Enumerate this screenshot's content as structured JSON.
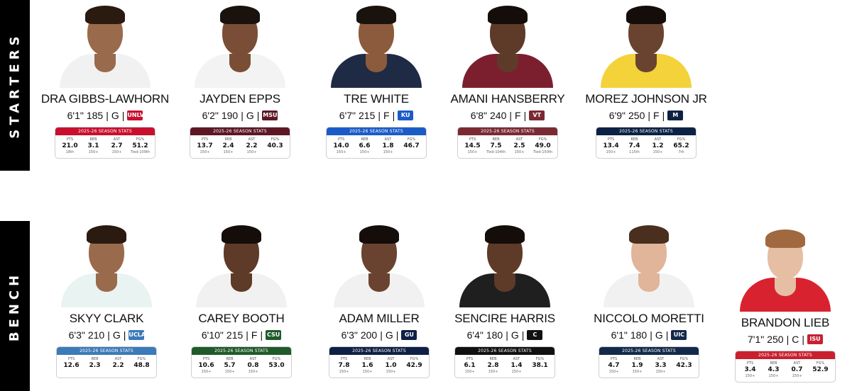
{
  "labels": {
    "starters": "STARTERS",
    "bench": "BENCH"
  },
  "starters": [
    {
      "name": "DRA GIBBS-LAWHORN",
      "height": "6'1\"",
      "weight": "185",
      "pos": "G",
      "school_abbr": "UNLV",
      "color": "#c8102e",
      "header": "2025-26 SEASON STATS",
      "jersey": "#f1f1f1",
      "skin": "#9a6a4c",
      "hair": "#2a1a10",
      "stats": [
        {
          "label": "PTS",
          "value": "21.0",
          "rank": "18th"
        },
        {
          "label": "REB",
          "value": "3.1",
          "rank": "150+"
        },
        {
          "label": "AST",
          "value": "2.7",
          "rank": "150+"
        },
        {
          "label": "FG%",
          "value": "51.2",
          "rank": "Tied-109th"
        }
      ]
    },
    {
      "name": "JAYDEN EPPS",
      "height": "6'2\"",
      "weight": "190",
      "pos": "G",
      "school_abbr": "MSU",
      "color": "#5d1725",
      "header": "2025-26 SEASON STATS",
      "jersey": "#f3f3f3",
      "skin": "#7a4e36",
      "hair": "#1a120d",
      "stats": [
        {
          "label": "PTS",
          "value": "13.7",
          "rank": "150+"
        },
        {
          "label": "REB",
          "value": "2.4",
          "rank": "150+"
        },
        {
          "label": "AST",
          "value": "2.2",
          "rank": "150+"
        },
        {
          "label": "FG%",
          "value": "40.3",
          "rank": ""
        }
      ]
    },
    {
      "name": "TRE WHITE",
      "height": "6'7\"",
      "weight": "215",
      "pos": "F",
      "school_abbr": "KU",
      "color": "#1c5bc7",
      "header": "2025-26 SEASON STATS",
      "jersey": "#1f2a44",
      "skin": "#8c5a3c",
      "hair": "#1a120d",
      "stats": [
        {
          "label": "PTS",
          "value": "14.0",
          "rank": "150+"
        },
        {
          "label": "REB",
          "value": "6.6",
          "rank": "150+"
        },
        {
          "label": "AST",
          "value": "1.8",
          "rank": "150+"
        },
        {
          "label": "FG%",
          "value": "46.7",
          "rank": ""
        }
      ]
    },
    {
      "name": "AMANI HANSBERRY",
      "height": "6'8\"",
      "weight": "240",
      "pos": "F",
      "school_abbr": "VT",
      "color": "#7a2a33",
      "header": "2025-26 SEASON STATS",
      "jersey": "#7b1f2e",
      "skin": "#5e3a28",
      "hair": "#140d09",
      "stats": [
        {
          "label": "PTS",
          "value": "14.5",
          "rank": "150+"
        },
        {
          "label": "REB",
          "value": "7.5",
          "rank": "Tied-104th"
        },
        {
          "label": "AST",
          "value": "2.5",
          "rank": "150+"
        },
        {
          "label": "FG%",
          "value": "49.0",
          "rank": "Tied-150th"
        }
      ]
    },
    {
      "name": "MOREZ JOHNSON JR",
      "height": "6'9\"",
      "weight": "250",
      "pos": "F",
      "school_abbr": "M",
      "color": "#0b2244",
      "header": "2025-26 SEASON STATS",
      "jersey": "#f3d23a",
      "skin": "#6a4330",
      "hair": "#140d09",
      "stats": [
        {
          "label": "PTS",
          "value": "13.4",
          "rank": "150+"
        },
        {
          "label": "REB",
          "value": "7.4",
          "rank": "115th"
        },
        {
          "label": "AST",
          "value": "1.2",
          "rank": "150+"
        },
        {
          "label": "FG%",
          "value": "65.2",
          "rank": "7th"
        }
      ]
    }
  ],
  "bench": [
    {
      "name": "SKYY CLARK",
      "height": "6'3\"",
      "weight": "210",
      "pos": "G",
      "school_abbr": "UCLA",
      "color": "#3c7ab8",
      "header": "2025-26 SEASON STATS",
      "jersey": "#e9f3f1",
      "skin": "#9a6a4c",
      "hair": "#2a1a10",
      "stats": [
        {
          "label": "PTS",
          "value": "12.6",
          "rank": ""
        },
        {
          "label": "REB",
          "value": "2.3",
          "rank": ""
        },
        {
          "label": "AST",
          "value": "2.2",
          "rank": ""
        },
        {
          "label": "FG%",
          "value": "48.8",
          "rank": ""
        }
      ]
    },
    {
      "name": "CAREY BOOTH",
      "height": "6'10\"",
      "weight": "215",
      "pos": "F",
      "school_abbr": "CSU",
      "color": "#1f5a2b",
      "header": "2025-26 SEASON STATS",
      "jersey": "#f1f1f1",
      "skin": "#5e3a28",
      "hair": "#140d09",
      "stats": [
        {
          "label": "PTS",
          "value": "10.6",
          "rank": "150+"
        },
        {
          "label": "REB",
          "value": "5.7",
          "rank": "150+"
        },
        {
          "label": "AST",
          "value": "0.8",
          "rank": "150+"
        },
        {
          "label": "FG%",
          "value": "53.0",
          "rank": ""
        }
      ]
    },
    {
      "name": "ADAM MILLER",
      "height": "6'3\"",
      "weight": "200",
      "pos": "G",
      "school_abbr": "GU",
      "color": "#0f1f45",
      "header": "2025-26 SEASON STATS",
      "jersey": "#f1f1f1",
      "skin": "#6a4330",
      "hair": "#140d09",
      "stats": [
        {
          "label": "PTS",
          "value": "7.8",
          "rank": "150+"
        },
        {
          "label": "REB",
          "value": "1.6",
          "rank": "150+"
        },
        {
          "label": "AST",
          "value": "1.0",
          "rank": "150+"
        },
        {
          "label": "FG%",
          "value": "42.9",
          "rank": ""
        }
      ]
    },
    {
      "name": "SENCIRE HARRIS",
      "height": "6'4\"",
      "weight": "180",
      "pos": "G",
      "school_abbr": "C",
      "color": "#111111",
      "header": "2025-26 SEASON STATS",
      "jersey": "#1f1f1f",
      "skin": "#5e3a28",
      "hair": "#140d09",
      "stats": [
        {
          "label": "PTS",
          "value": "6.1",
          "rank": "150+"
        },
        {
          "label": "REB",
          "value": "2.8",
          "rank": "150+"
        },
        {
          "label": "AST",
          "value": "1.4",
          "rank": "150+"
        },
        {
          "label": "FG%",
          "value": "38.1",
          "rank": ""
        }
      ]
    },
    {
      "name": "NICCOLO MORETTI",
      "height": "6'1\"",
      "weight": "180",
      "pos": "G",
      "school_abbr": "UIC",
      "color": "#13294b",
      "header": "2025-26 SEASON STATS",
      "jersey": "#f1f1f1",
      "skin": "#e0b59a",
      "hair": "#4a2f1e",
      "stats": [
        {
          "label": "PTS",
          "value": "4.7",
          "rank": "150+"
        },
        {
          "label": "REB",
          "value": "1.9",
          "rank": "150+"
        },
        {
          "label": "AST",
          "value": "3.3",
          "rank": "150+"
        },
        {
          "label": "FG%",
          "value": "42.3",
          "rank": ""
        }
      ]
    },
    {
      "name": "BRANDON LIEB",
      "height": "7'1\"",
      "weight": "250",
      "pos": "C",
      "school_abbr": "ISU",
      "color": "#c8202f",
      "header": "2025-26 SEASON STATS",
      "jersey": "#d9222f",
      "skin": "#e6bea4",
      "hair": "#a0693f",
      "stats": [
        {
          "label": "PTS",
          "value": "3.4",
          "rank": "150+"
        },
        {
          "label": "REB",
          "value": "4.3",
          "rank": "150+"
        },
        {
          "label": "AST",
          "value": "0.7",
          "rank": "150+"
        },
        {
          "label": "FG%",
          "value": "52.9",
          "rank": ""
        }
      ]
    }
  ]
}
